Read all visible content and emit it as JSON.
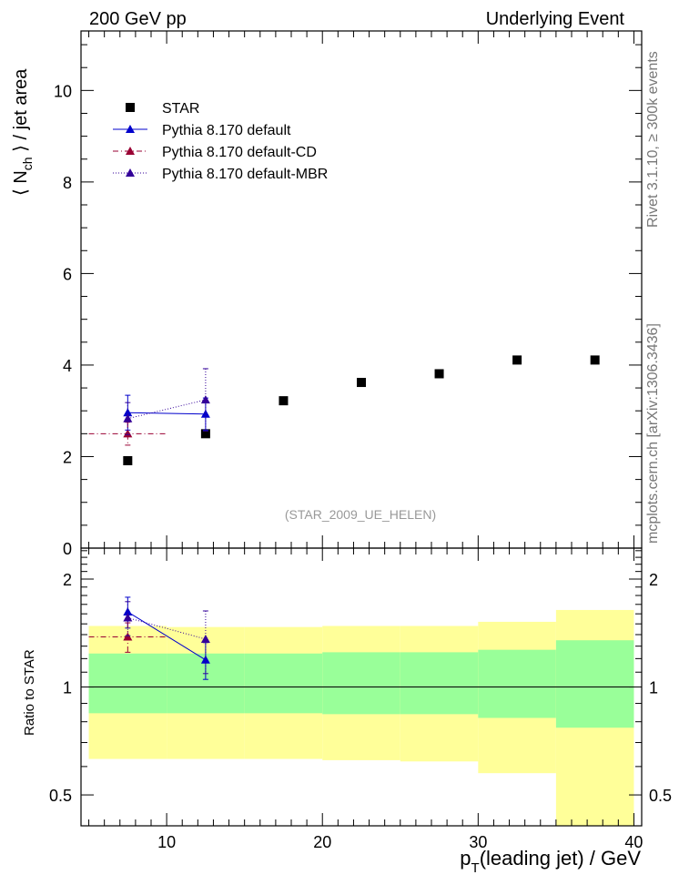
{
  "header": {
    "left_label": "200 GeV pp",
    "right_label": "Underlying Event"
  },
  "side_labels": {
    "rivet": "Rivet 3.1.10, ≥ 300k events",
    "mcplots": "mcplots.cern.ch [arXiv:1306.3436]"
  },
  "analysis_id": "(STAR_2009_UE_HELEN)",
  "colors": {
    "star": "#000000",
    "default": "#0000cc",
    "cd": "#990033",
    "mbr": "#330099",
    "band_inner": "#99ff99",
    "band_outer": "#ffff99"
  },
  "chart_data": [
    {
      "type": "scatter",
      "panel": "main",
      "xlabel": "p_T(leading jet) / GeV",
      "ylabel": "⟨ N_ch ⟩ / jet area",
      "xlim": [
        4.5,
        40.5
      ],
      "ylim": [
        0,
        11.3
      ],
      "yticks": [
        0,
        2,
        4,
        6,
        8,
        10
      ],
      "xticks": [
        10,
        20,
        30,
        40
      ],
      "legend_position": "top-left",
      "series": [
        {
          "name": "STAR",
          "style": "marker-square",
          "x": [
            7.5,
            12.5,
            17.5,
            22.5,
            27.5,
            32.5,
            37.5
          ],
          "y": [
            1.91,
            2.5,
            3.22,
            3.62,
            3.81,
            4.11,
            4.11
          ]
        },
        {
          "name": "Pythia 8.170 default",
          "style": "solid",
          "x": [
            7.5,
            12.5
          ],
          "xerr": [
            0,
            0
          ],
          "y": [
            2.96,
            2.93
          ],
          "yerr": [
            0.38,
            0.35
          ]
        },
        {
          "name": "Pythia 8.170 default-CD",
          "style": "dashdot",
          "x": [
            7.5
          ],
          "xerr": [
            2.5
          ],
          "y": [
            2.5
          ],
          "yerr": [
            0.25
          ]
        },
        {
          "name": "Pythia 8.170 default-MBR",
          "style": "dotted",
          "x": [
            7.5,
            12.5
          ],
          "xerr": [
            0,
            0
          ],
          "y": [
            2.83,
            3.24
          ],
          "yerr": [
            0.35,
            0.68
          ]
        }
      ]
    },
    {
      "type": "scatter",
      "panel": "ratio",
      "xlabel": "p_T(leading jet) / GeV",
      "ylabel": "Ratio to STAR",
      "xlim": [
        4.5,
        40.5
      ],
      "ylim": [
        0.41,
        2.44
      ],
      "yscale": "log",
      "yticks": [
        0.5,
        1,
        2
      ],
      "xticks": [
        10,
        20,
        30,
        40
      ],
      "bands": {
        "x_edges": [
          5,
          10,
          15,
          20,
          25,
          30,
          35,
          40
        ],
        "inner_low": [
          0.845,
          0.845,
          0.845,
          0.84,
          0.84,
          0.82,
          0.77
        ],
        "inner_high": [
          1.24,
          1.24,
          1.24,
          1.25,
          1.25,
          1.27,
          1.35
        ],
        "outer_low": [
          0.63,
          0.63,
          0.63,
          0.625,
          0.62,
          0.575,
          0.41
        ],
        "outer_high": [
          1.48,
          1.47,
          1.47,
          1.48,
          1.48,
          1.52,
          1.64
        ]
      },
      "series": [
        {
          "name": "Pythia 8.170 default",
          "x": [
            7.5,
            12.5
          ],
          "y": [
            1.62,
            1.19
          ],
          "yerr": [
            0.16,
            0.14
          ]
        },
        {
          "name": "Pythia 8.170 default-CD",
          "x": [
            7.5
          ],
          "xerr": [
            2.5
          ],
          "y": [
            1.38
          ],
          "yerr": [
            0.13
          ]
        },
        {
          "name": "Pythia 8.170 default-MBR",
          "x": [
            7.5,
            12.5
          ],
          "y": [
            1.56,
            1.36
          ],
          "yerr": [
            0.17,
            0.27
          ]
        }
      ]
    }
  ]
}
